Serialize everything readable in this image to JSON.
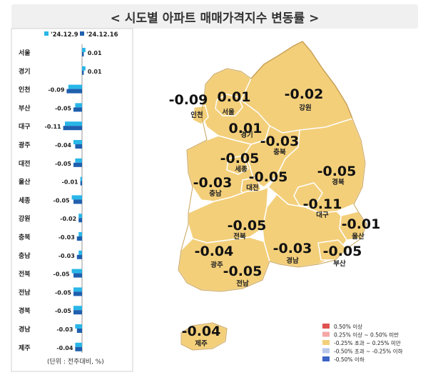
{
  "title": "< 시도별 아파트 매매가격지수 변동률 >",
  "unit_note": "(단위 : 전주대비, %)",
  "colors": {
    "series_prev": "#29b6e8",
    "series_curr": "#1f5fae",
    "map_land": "#f3cf7a",
    "map_border": "#ffffff",
    "map_outline": "#c9a35a",
    "legend_1": "#e0524f",
    "legend_2": "#f4a7a5",
    "legend_3": "#f3cf7a",
    "legend_4": "#b9c7ea",
    "legend_5": "#3d64c6"
  },
  "chart_data": [
    {
      "type": "bar",
      "orientation": "horizontal",
      "categories": [
        "서울",
        "경기",
        "인천",
        "부산",
        "대구",
        "광주",
        "대전",
        "울산",
        "세종",
        "강원",
        "충북",
        "충남",
        "전북",
        "전남",
        "경북",
        "경남",
        "제주"
      ],
      "series": [
        {
          "name": "'24.12.9",
          "values": [
            0.02,
            0.02,
            -0.08,
            -0.04,
            -0.1,
            -0.05,
            -0.04,
            -0.01,
            -0.06,
            -0.02,
            -0.02,
            -0.02,
            -0.06,
            -0.05,
            -0.05,
            -0.04,
            -0.04
          ]
        },
        {
          "name": "'24.12.16",
          "values": [
            0.01,
            0.01,
            -0.09,
            -0.05,
            -0.11,
            -0.04,
            -0.05,
            -0.01,
            -0.05,
            -0.02,
            -0.03,
            -0.03,
            -0.05,
            -0.05,
            -0.05,
            -0.03,
            -0.04
          ]
        }
      ],
      "data_labels": [
        "0.01",
        "0.01",
        "-0.09",
        "-0.05",
        "-0.11",
        "-0.04",
        "-0.05",
        "-0.01",
        "-0.05",
        "-0.02",
        "-0.03",
        "-0.03",
        "-0.05",
        "-0.05",
        "-0.05",
        "-0.03",
        "-0.04"
      ]
    },
    {
      "type": "map",
      "regions": [
        {
          "name": "서울",
          "value": "0.01"
        },
        {
          "name": "경기",
          "value": "0.01"
        },
        {
          "name": "인천",
          "value": "-0.09"
        },
        {
          "name": "강원",
          "value": "-0.02"
        },
        {
          "name": "충북",
          "value": "-0.03"
        },
        {
          "name": "세종",
          "value": "-0.05"
        },
        {
          "name": "대전",
          "value": "-0.05"
        },
        {
          "name": "충남",
          "value": "-0.03"
        },
        {
          "name": "경북",
          "value": "-0.05"
        },
        {
          "name": "대구",
          "value": "-0.11"
        },
        {
          "name": "울산",
          "value": "-0.01"
        },
        {
          "name": "전북",
          "value": "-0.05"
        },
        {
          "name": "광주",
          "value": "-0.04"
        },
        {
          "name": "경남",
          "value": "-0.03"
        },
        {
          "name": "부산",
          "value": "-0.05"
        },
        {
          "name": "전남",
          "value": "-0.05"
        },
        {
          "name": "제주",
          "value": "-0.04"
        }
      ],
      "legend": [
        "0.50% 이상",
        "0.25% 이상 ~ 0.50% 미만",
        "-0.25% 초과 ~ 0.25% 미만",
        "-0.50% 초과 ~ -0.25% 이하",
        "-0.50% 이하"
      ]
    }
  ]
}
